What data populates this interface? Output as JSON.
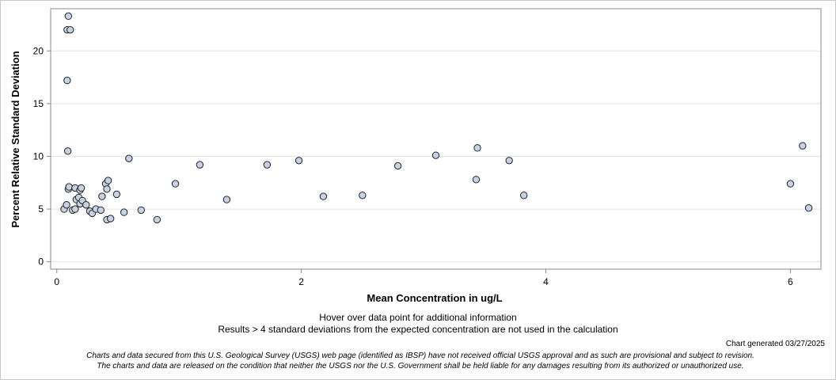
{
  "chart_data": {
    "type": "scatter",
    "xlabel": "Mean Concentration in ug/L",
    "ylabel": "Percent Relative Standard Deviation",
    "xlim": [
      -0.05,
      6.25
    ],
    "ylim": [
      -0.7,
      24.0
    ],
    "x_ticks": [
      0,
      2,
      4,
      6
    ],
    "y_ticks": [
      0,
      5,
      10,
      15,
      20
    ],
    "grid": "horizontal",
    "marker_fill": "#c6d3e4",
    "marker_stroke": "#222222",
    "points": [
      {
        "x": 0.06,
        "y": 5.0
      },
      {
        "x": 0.08,
        "y": 5.4
      },
      {
        "x": 0.085,
        "y": 22.0
      },
      {
        "x": 0.085,
        "y": 17.2
      },
      {
        "x": 0.09,
        "y": 10.5
      },
      {
        "x": 0.095,
        "y": 23.3
      },
      {
        "x": 0.095,
        "y": 6.9
      },
      {
        "x": 0.1,
        "y": 7.1
      },
      {
        "x": 0.11,
        "y": 22.0
      },
      {
        "x": 0.13,
        "y": 4.9
      },
      {
        "x": 0.15,
        "y": 5.0
      },
      {
        "x": 0.15,
        "y": 7.0
      },
      {
        "x": 0.16,
        "y": 5.9
      },
      {
        "x": 0.18,
        "y": 6.1
      },
      {
        "x": 0.19,
        "y": 6.8
      },
      {
        "x": 0.19,
        "y": 5.5
      },
      {
        "x": 0.2,
        "y": 7.0
      },
      {
        "x": 0.21,
        "y": 5.8
      },
      {
        "x": 0.24,
        "y": 5.4
      },
      {
        "x": 0.27,
        "y": 4.8
      },
      {
        "x": 0.29,
        "y": 4.6
      },
      {
        "x": 0.32,
        "y": 5.0
      },
      {
        "x": 0.36,
        "y": 4.9
      },
      {
        "x": 0.37,
        "y": 6.2
      },
      {
        "x": 0.4,
        "y": 7.4
      },
      {
        "x": 0.41,
        "y": 6.9
      },
      {
        "x": 0.41,
        "y": 4.0
      },
      {
        "x": 0.42,
        "y": 7.7
      },
      {
        "x": 0.44,
        "y": 4.1
      },
      {
        "x": 0.49,
        "y": 6.4
      },
      {
        "x": 0.55,
        "y": 4.7
      },
      {
        "x": 0.59,
        "y": 9.8
      },
      {
        "x": 0.69,
        "y": 4.9
      },
      {
        "x": 0.82,
        "y": 4.0
      },
      {
        "x": 0.97,
        "y": 7.4
      },
      {
        "x": 1.17,
        "y": 9.2
      },
      {
        "x": 1.39,
        "y": 5.9
      },
      {
        "x": 1.72,
        "y": 9.2
      },
      {
        "x": 1.98,
        "y": 9.6
      },
      {
        "x": 2.18,
        "y": 6.2
      },
      {
        "x": 2.5,
        "y": 6.3
      },
      {
        "x": 2.79,
        "y": 9.1
      },
      {
        "x": 3.1,
        "y": 10.1
      },
      {
        "x": 3.43,
        "y": 7.8
      },
      {
        "x": 3.44,
        "y": 10.8
      },
      {
        "x": 3.7,
        "y": 9.6
      },
      {
        "x": 3.82,
        "y": 6.3
      },
      {
        "x": 6.0,
        "y": 7.4
      },
      {
        "x": 6.1,
        "y": 11.0
      },
      {
        "x": 6.15,
        "y": 5.1
      }
    ]
  },
  "notes": {
    "hover": "Hover over data point for additional information",
    "exclusion": "Results > 4 standard deviations from the expected concentration are not used in the calculation"
  },
  "generated": "Chart generated 03/27/2025",
  "disclaimer": {
    "line1": "Charts and data secured from this U.S. Geological Survey (USGS) web page (identified as IBSP) have not received official USGS approval and as such are provisional and subject to revision.",
    "line2": "The charts and data are released on the condition that neither the USGS nor the U.S. Government shall be held liable for any damages resulting from its authorized or unauthorized use."
  }
}
